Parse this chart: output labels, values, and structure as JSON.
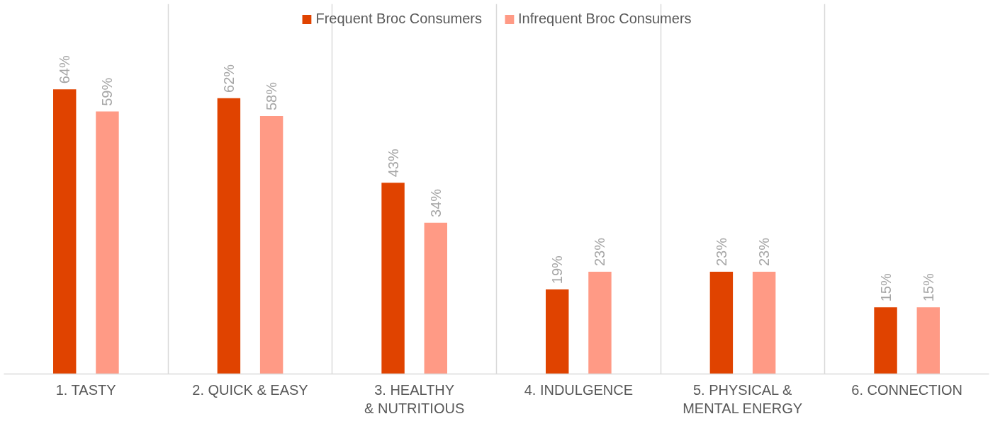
{
  "chart_data": {
    "type": "bar",
    "categories": [
      "1. TASTY",
      "2. QUICK & EASY",
      "3. HEALTHY & NUTRITIOUS",
      "4. INDULGENCE",
      "5. PHYSICAL & MENTAL ENERGY",
      "6. CONNECTION"
    ],
    "series": [
      {
        "name": "Frequent Broc Consumers",
        "color": "#e04300",
        "values": [
          64,
          62,
          43,
          19,
          23,
          15
        ],
        "value_labels": [
          "64%",
          "62%",
          "43%",
          "19%",
          "23%",
          "15%"
        ]
      },
      {
        "name": "Infrequent Broc Consumers",
        "color": "#ff9a85",
        "values": [
          59,
          58,
          34,
          23,
          23,
          15
        ],
        "value_labels": [
          "59%",
          "58%",
          "34%",
          "23%",
          "23%",
          "15%"
        ]
      }
    ],
    "legend": "top",
    "grid": "x"
  }
}
